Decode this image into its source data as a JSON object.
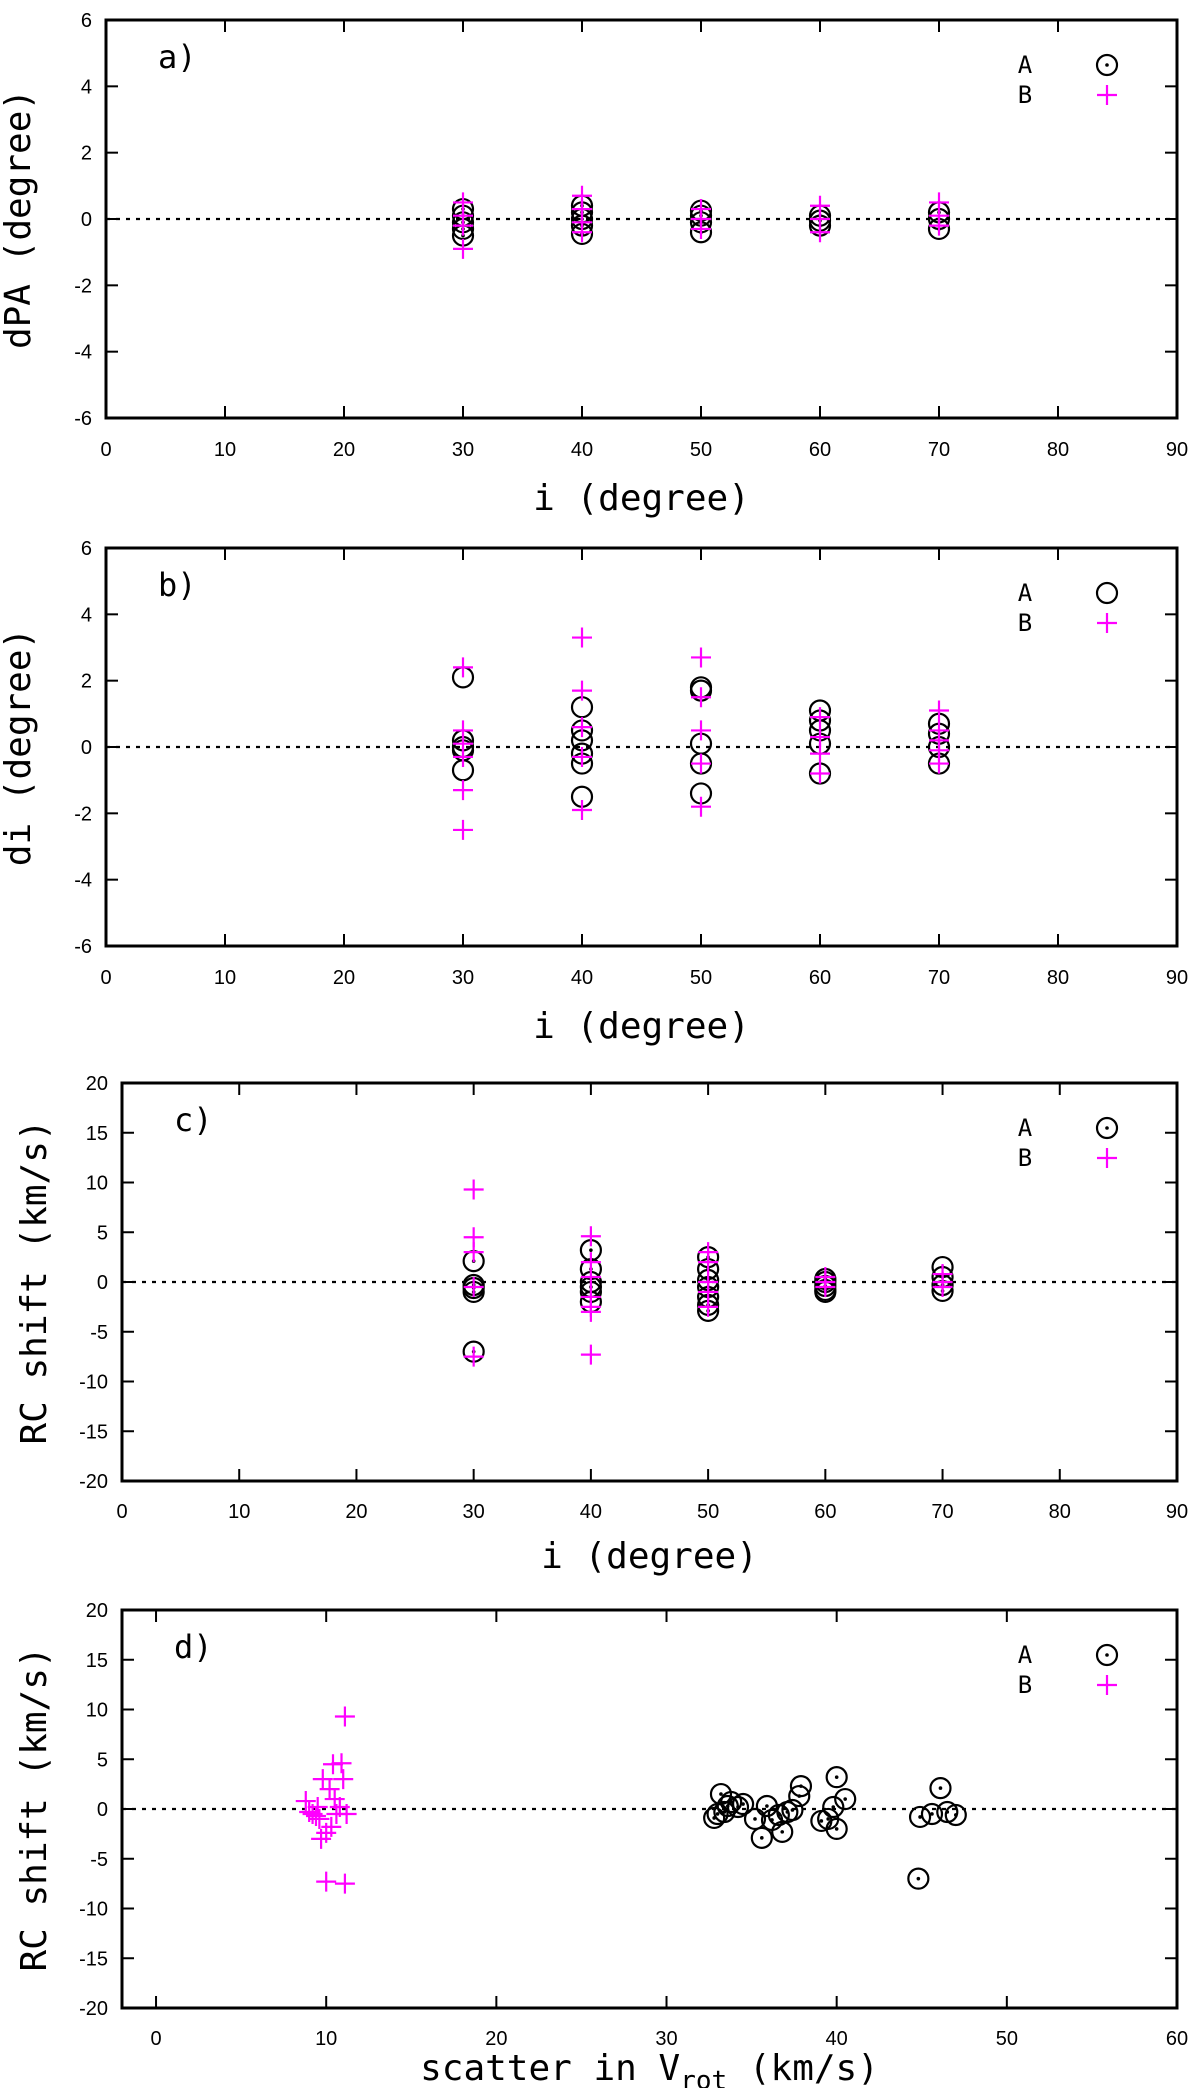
{
  "colors": {
    "A": "#000000",
    "B": "#ff00ff",
    "frame": "#000000",
    "zero_line": "#000000"
  },
  "chart_data": [
    {
      "type": "scatter",
      "panel_label": "a)",
      "xlabel": "i   (degree)",
      "ylabel": "dPA  (degree)",
      "xlim": [
        0,
        90
      ],
      "ylim": [
        -6,
        6
      ],
      "xticks": [
        0,
        10,
        20,
        30,
        40,
        50,
        60,
        70,
        80,
        90
      ],
      "yticks": [
        -6,
        -4,
        -2,
        0,
        2,
        4,
        6
      ],
      "zero_line": true,
      "legend": {
        "position": "top-right",
        "entries": [
          "A",
          "B"
        ]
      },
      "series": [
        {
          "name": "A",
          "marker": "circle-dot",
          "points": [
            [
              30,
              0.3
            ],
            [
              30,
              0.1
            ],
            [
              30,
              -0.1
            ],
            [
              30,
              -0.3
            ],
            [
              30,
              -0.5
            ],
            [
              40,
              0.4
            ],
            [
              40,
              0.2
            ],
            [
              40,
              0.0
            ],
            [
              40,
              -0.2
            ],
            [
              40,
              -0.45
            ],
            [
              50,
              0.25
            ],
            [
              50,
              0.1
            ],
            [
              50,
              -0.1
            ],
            [
              50,
              -0.4
            ],
            [
              60,
              0.1
            ],
            [
              60,
              -0.05
            ],
            [
              60,
              -0.2
            ],
            [
              70,
              0.2
            ],
            [
              70,
              0.0
            ],
            [
              70,
              -0.3
            ]
          ]
        },
        {
          "name": "B",
          "marker": "plus",
          "points": [
            [
              30,
              0.5
            ],
            [
              30,
              0.1
            ],
            [
              30,
              -0.2
            ],
            [
              30,
              -0.9
            ],
            [
              40,
              0.7
            ],
            [
              40,
              0.3
            ],
            [
              40,
              -0.1
            ],
            [
              40,
              -0.4
            ],
            [
              50,
              0.3
            ],
            [
              50,
              0.0
            ],
            [
              50,
              -0.3
            ],
            [
              60,
              0.4
            ],
            [
              60,
              0.0
            ],
            [
              60,
              -0.4
            ],
            [
              70,
              0.5
            ],
            [
              70,
              0.1
            ],
            [
              70,
              -0.2
            ]
          ]
        }
      ]
    },
    {
      "type": "scatter",
      "panel_label": "b)",
      "xlabel": "i   (degree)",
      "ylabel": "di  (degree)",
      "xlim": [
        0,
        90
      ],
      "ylim": [
        -6,
        6
      ],
      "xticks": [
        0,
        10,
        20,
        30,
        40,
        50,
        60,
        70,
        80,
        90
      ],
      "yticks": [
        -6,
        -4,
        -2,
        0,
        2,
        4,
        6
      ],
      "zero_line": true,
      "legend": {
        "position": "top-right",
        "entries": [
          "A",
          "B"
        ]
      },
      "series": [
        {
          "name": "A",
          "marker": "circle",
          "points": [
            [
              30,
              2.1
            ],
            [
              30,
              0.2
            ],
            [
              30,
              0.0
            ],
            [
              30,
              -0.1
            ],
            [
              30,
              -0.7
            ],
            [
              40,
              1.2
            ],
            [
              40,
              0.5
            ],
            [
              40,
              0.2
            ],
            [
              40,
              -0.2
            ],
            [
              40,
              -0.5
            ],
            [
              40,
              -1.5
            ],
            [
              50,
              1.8
            ],
            [
              50,
              1.7
            ],
            [
              50,
              0.1
            ],
            [
              50,
              -0.5
            ],
            [
              50,
              -1.4
            ],
            [
              60,
              1.1
            ],
            [
              60,
              0.8
            ],
            [
              60,
              0.5
            ],
            [
              60,
              0.1
            ],
            [
              60,
              -0.8
            ],
            [
              70,
              0.7
            ],
            [
              70,
              0.4
            ],
            [
              70,
              0.0
            ],
            [
              70,
              -0.5
            ]
          ]
        },
        {
          "name": "B",
          "marker": "plus",
          "points": [
            [
              30,
              2.4
            ],
            [
              30,
              0.5
            ],
            [
              30,
              0.1
            ],
            [
              30,
              -0.3
            ],
            [
              30,
              -1.3
            ],
            [
              30,
              -2.5
            ],
            [
              40,
              3.3
            ],
            [
              40,
              1.7
            ],
            [
              40,
              0.6
            ],
            [
              40,
              -0.3
            ],
            [
              40,
              -1.9
            ],
            [
              50,
              2.7
            ],
            [
              50,
              1.5
            ],
            [
              50,
              0.5
            ],
            [
              50,
              -0.5
            ],
            [
              50,
              -1.8
            ],
            [
              60,
              0.9
            ],
            [
              60,
              0.3
            ],
            [
              60,
              -0.2
            ],
            [
              60,
              -0.8
            ],
            [
              70,
              1.1
            ],
            [
              70,
              0.5
            ],
            [
              70,
              0.2
            ],
            [
              70,
              -0.1
            ],
            [
              70,
              -0.5
            ]
          ]
        }
      ]
    },
    {
      "type": "scatter",
      "panel_label": "c)",
      "xlabel": "i   (degree)",
      "ylabel": "RC shift  (km/s)",
      "xlim": [
        0,
        90
      ],
      "ylim": [
        -20,
        20
      ],
      "xticks": [
        0,
        10,
        20,
        30,
        40,
        50,
        60,
        70,
        80,
        90
      ],
      "yticks": [
        -20,
        -15,
        -10,
        -5,
        0,
        5,
        10,
        15,
        20
      ],
      "zero_line": true,
      "legend": {
        "position": "top-right",
        "entries": [
          "A",
          "B"
        ]
      },
      "series": [
        {
          "name": "A",
          "marker": "circle-dot",
          "points": [
            [
              30,
              2.1
            ],
            [
              30,
              -0.3
            ],
            [
              30,
              -0.6
            ],
            [
              30,
              -1.0
            ],
            [
              30,
              -7.0
            ],
            [
              40,
              3.2
            ],
            [
              40,
              1.3
            ],
            [
              40,
              0.0
            ],
            [
              40,
              -0.5
            ],
            [
              40,
              -1.0
            ],
            [
              40,
              -2.0
            ],
            [
              50,
              2.5
            ],
            [
              50,
              1.3
            ],
            [
              50,
              0.2
            ],
            [
              50,
              -0.5
            ],
            [
              50,
              -1.5
            ],
            [
              50,
              -2.3
            ],
            [
              50,
              -2.9
            ],
            [
              60,
              0.3
            ],
            [
              60,
              0.0
            ],
            [
              60,
              -0.4
            ],
            [
              60,
              -0.8
            ],
            [
              60,
              -1.0
            ],
            [
              70,
              1.5
            ],
            [
              70,
              0.5
            ],
            [
              70,
              -0.3
            ],
            [
              70,
              -0.9
            ]
          ]
        },
        {
          "name": "B",
          "marker": "plus",
          "points": [
            [
              30,
              9.3
            ],
            [
              30,
              4.5
            ],
            [
              30,
              3.0
            ],
            [
              30,
              -0.5
            ],
            [
              30,
              -7.5
            ],
            [
              40,
              4.6
            ],
            [
              40,
              2.0
            ],
            [
              40,
              0.5
            ],
            [
              40,
              -1.5
            ],
            [
              40,
              -2.5
            ],
            [
              40,
              -3.0
            ],
            [
              40,
              -7.3
            ],
            [
              50,
              3.0
            ],
            [
              50,
              2.0
            ],
            [
              50,
              0.0
            ],
            [
              50,
              -1.0
            ],
            [
              50,
              -2.5
            ],
            [
              60,
              0.5
            ],
            [
              60,
              0.0
            ],
            [
              60,
              -0.5
            ],
            [
              70,
              0.8
            ],
            [
              70,
              0.0
            ],
            [
              70,
              -0.5
            ]
          ]
        }
      ]
    },
    {
      "type": "scatter",
      "panel_label": "d)",
      "xlabel": "scatter in V",
      "xlabel_subscript": "rot",
      "xlabel_unit": "(km/s)",
      "ylabel": "RC shift  (km/s)",
      "xlim": [
        -2,
        60
      ],
      "ylim": [
        -20,
        20
      ],
      "xticks": [
        0,
        10,
        20,
        30,
        40,
        50,
        60
      ],
      "yticks": [
        -20,
        -15,
        -10,
        -5,
        0,
        5,
        10,
        15,
        20
      ],
      "zero_line": true,
      "legend": {
        "position": "top-right",
        "entries": [
          "A",
          "B"
        ]
      },
      "series": [
        {
          "name": "A",
          "marker": "circle-dot",
          "points": [
            [
              32.8,
              -0.9
            ],
            [
              33.0,
              -0.5
            ],
            [
              33.2,
              1.5
            ],
            [
              33.4,
              -0.3
            ],
            [
              33.6,
              0.3
            ],
            [
              33.8,
              0.7
            ],
            [
              34.2,
              0.2
            ],
            [
              34.5,
              0.5
            ],
            [
              35.2,
              -1.0
            ],
            [
              35.6,
              -2.9
            ],
            [
              35.9,
              0.3
            ],
            [
              36.2,
              -1.1
            ],
            [
              36.6,
              -0.6
            ],
            [
              36.8,
              -2.3
            ],
            [
              37.1,
              -0.3
            ],
            [
              37.4,
              -0.1
            ],
            [
              37.8,
              1.3
            ],
            [
              37.9,
              2.3
            ],
            [
              39.1,
              -1.2
            ],
            [
              39.5,
              -1.0
            ],
            [
              39.8,
              0.2
            ],
            [
              40.0,
              3.2
            ],
            [
              40.0,
              -2.0
            ],
            [
              40.5,
              1.0
            ],
            [
              44.8,
              -7.0
            ],
            [
              44.9,
              -0.8
            ],
            [
              45.6,
              -0.5
            ],
            [
              46.1,
              2.1
            ],
            [
              46.5,
              -0.3
            ],
            [
              47.0,
              -0.6
            ]
          ]
        },
        {
          "name": "B",
          "marker": "plus",
          "points": [
            [
              8.8,
              0.8
            ],
            [
              9.0,
              -0.3
            ],
            [
              9.2,
              -0.5
            ],
            [
              9.4,
              -0.7
            ],
            [
              9.5,
              0.2
            ],
            [
              9.6,
              -1.0
            ],
            [
              9.7,
              -3.0
            ],
            [
              9.8,
              3.0
            ],
            [
              10.0,
              -2.4
            ],
            [
              10.0,
              -7.3
            ],
            [
              10.2,
              2.0
            ],
            [
              10.3,
              -1.8
            ],
            [
              10.4,
              4.5
            ],
            [
              10.5,
              1.0
            ],
            [
              10.6,
              -0.5
            ],
            [
              10.8,
              0.2
            ],
            [
              10.9,
              4.6
            ],
            [
              11.0,
              3.0
            ],
            [
              11.1,
              9.3
            ],
            [
              11.2,
              -0.5
            ],
            [
              11.1,
              -7.5
            ]
          ]
        }
      ]
    }
  ]
}
